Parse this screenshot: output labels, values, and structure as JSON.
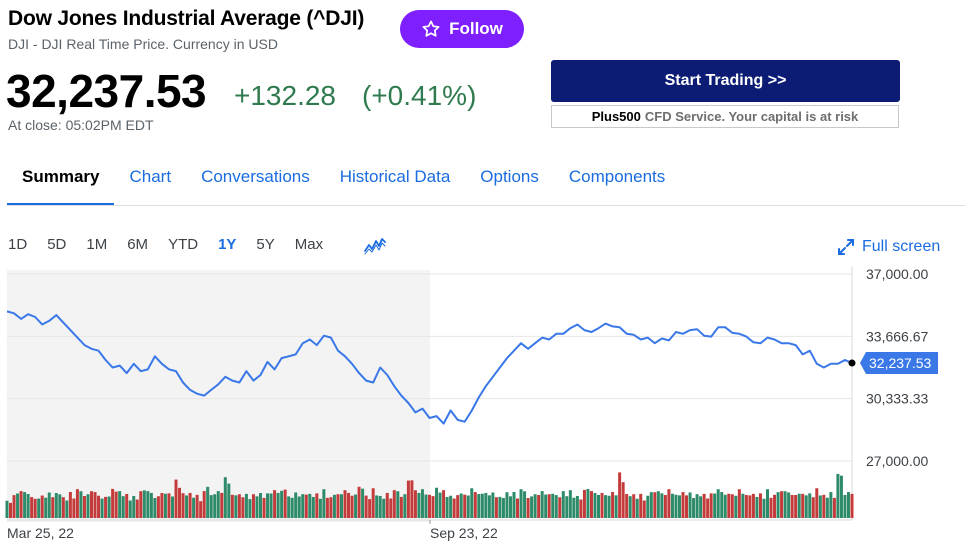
{
  "header": {
    "title": "Dow Jones Industrial Average (^DJI)",
    "subtitle": "DJI - DJI Real Time Price. Currency in USD",
    "follow_label": "Follow",
    "follow_icon": "star-outline-icon"
  },
  "quote": {
    "price": "32,237.53",
    "change": "+132.28",
    "change_pct": "(+0.41%)",
    "close_time": "At close: 05:02PM EDT",
    "change_color": "#2f7a4f"
  },
  "promo": {
    "button_label": "Start Trading >>",
    "brand": "Plus500",
    "disclaimer": "CFD Service. Your capital is at risk"
  },
  "tabs": [
    {
      "label": "Summary",
      "active": true
    },
    {
      "label": "Chart"
    },
    {
      "label": "Conversations"
    },
    {
      "label": "Historical Data"
    },
    {
      "label": "Options"
    },
    {
      "label": "Components"
    }
  ],
  "chart_controls": {
    "ranges": [
      "1D",
      "5D",
      "1M",
      "6M",
      "YTD",
      "1Y",
      "5Y",
      "Max"
    ],
    "active_range": "1Y",
    "chart_type_icon": "line-chart-icon",
    "fullscreen_label": "Full screen",
    "fullscreen_icon": "expand-icon"
  },
  "colors": {
    "accent": "#1a6ce0",
    "line": "#3a78e8",
    "follow": "#7e1fff",
    "trade": "#0c1c74",
    "vol_up": "#2e8b6a",
    "vol_down": "#c43b3b"
  },
  "chart_data": {
    "type": "line",
    "y_ticks": [
      "37,000.00",
      "33,666.67",
      "30,333.33",
      "27,000.00"
    ],
    "ylim": [
      27000,
      37000
    ],
    "x_labels": [
      "Mar 25, 22",
      "Sep 23, 22"
    ],
    "current_label": "32,237.53",
    "current_value": 32237.53,
    "series": [
      {
        "values": [
          35000,
          34900,
          34600,
          34850,
          34700,
          34300,
          34500,
          34800,
          34400,
          34000,
          33600,
          33200,
          33000,
          32900,
          32400,
          32000,
          32100,
          31700,
          32200,
          31800,
          31900,
          32600,
          32200,
          31900,
          31800,
          31200,
          30800,
          30600,
          30500,
          30800,
          31100,
          31500,
          31300,
          31200,
          31800,
          31300,
          31600,
          32300,
          31900,
          32500,
          32600,
          32700,
          33300,
          33500,
          33200,
          33700,
          33600,
          32900,
          32600,
          32200,
          31700,
          31300,
          31200,
          32000,
          31600,
          31000,
          30500,
          30100,
          29600,
          29800,
          29300,
          29400,
          29000,
          29700,
          29200,
          29100,
          29700,
          30400,
          31000,
          31500,
          32000,
          32500,
          32900,
          33300,
          33000,
          33300,
          33600,
          33500,
          33800,
          33800,
          34100,
          34300,
          34000,
          33900,
          34100,
          34350,
          34200,
          34150,
          33800,
          33750,
          33500,
          33600,
          33300,
          33550,
          33450,
          33900,
          33800,
          34000,
          34050,
          33700,
          33650,
          34150,
          34150,
          33850,
          33800,
          33650,
          33350,
          33300,
          33600,
          33500,
          33300,
          33300,
          33200,
          32700,
          32900,
          32200,
          32000,
          32200,
          32200,
          32400,
          32237.53
        ],
        "volume_scale": [
          0.45,
          0.55,
          0.6,
          0.5,
          0.48,
          0.52,
          0.55,
          0.65,
          0.5,
          0.58,
          0.6,
          0.55,
          0.62,
          0.48,
          0.55,
          0.7,
          0.6,
          0.5,
          0.55,
          0.62,
          0.58,
          0.52,
          0.6,
          0.55,
          0.8,
          0.62,
          0.58,
          0.5,
          0.7,
          0.55,
          0.6,
          0.85,
          0.58,
          0.55,
          0.52,
          0.62,
          0.6,
          0.55,
          0.58,
          0.68,
          0.5,
          0.55,
          0.62,
          0.58,
          0.55,
          0.6,
          0.52,
          0.55,
          0.6,
          0.58,
          0.75,
          0.5,
          0.62,
          0.55,
          0.58,
          0.6,
          0.55,
          0.9,
          0.62,
          0.6,
          0.58,
          0.7,
          0.6,
          0.58,
          0.55,
          0.52,
          0.62,
          0.6,
          0.58,
          0.55,
          0.55,
          0.62,
          0.58,
          0.6,
          0.5,
          0.55,
          0.58,
          0.62,
          0.55,
          0.6,
          0.58,
          0.55,
          0.65,
          0.58,
          0.6,
          0.55,
          0.58,
          0.95,
          0.6,
          0.55,
          0.52,
          0.58,
          0.62,
          0.55,
          0.6,
          0.58,
          0.6,
          0.55,
          0.62,
          0.58,
          0.55,
          0.6,
          0.58,
          0.55,
          0.62,
          0.6,
          0.58,
          0.55,
          0.6,
          0.58,
          0.62,
          0.55,
          0.6,
          0.58,
          0.55,
          0.62,
          0.58,
          0.6,
          0.95,
          0.6,
          0.58
        ]
      }
    ]
  }
}
